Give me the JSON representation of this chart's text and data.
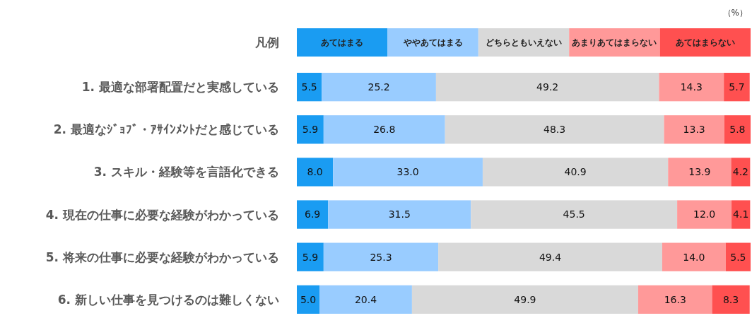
{
  "chart_data": {
    "type": "bar",
    "orientation": "horizontal",
    "stacked": true,
    "legend": "top",
    "legend_title": "凡例",
    "annotations": [
      "（%）"
    ],
    "categories": [
      "1. 最適な部署配置だと実感している",
      "2. 最適なｼﾞｮﾌﾞ・ｱｻｲﾝﾒﾝﾄだと感じている",
      "3. スキル・経験等を言語化できる",
      "4. 現在の仕事に必要な経験がわかっている",
      "5. 将来の仕事に必要な経験がわかっている",
      "6. 新しい仕事を見つけるのは難しくない"
    ],
    "series": [
      {
        "name": "あてはまる",
        "color": "#1a9cf2",
        "values": [
          5.5,
          5.9,
          8.0,
          6.9,
          5.9,
          5.0
        ],
        "value_labels": [
          "5.5",
          "5.9",
          "8.0",
          "6.9",
          "5.9",
          "5.0"
        ]
      },
      {
        "name": "ややあてはまる",
        "color": "#99ccff",
        "values": [
          25.2,
          26.8,
          33.0,
          31.5,
          25.3,
          20.4
        ],
        "value_labels": [
          "25.2",
          "26.8",
          "33.0",
          "31.5",
          "25.3",
          "20.4"
        ]
      },
      {
        "name": "どちらともいえない",
        "color": "#d9d9d9",
        "values": [
          49.2,
          48.3,
          40.9,
          45.5,
          49.4,
          49.9
        ],
        "value_labels": [
          "49.2",
          "48.3",
          "40.9",
          "45.5",
          "49.4",
          "49.9"
        ]
      },
      {
        "name": "あまりあてはまらない",
        "color": "#ff9999",
        "values": [
          14.3,
          13.3,
          13.9,
          12.0,
          14.0,
          16.3
        ],
        "value_labels": [
          "14.3",
          "13.3",
          "13.9",
          "12.0",
          "14.0",
          "16.3"
        ]
      },
      {
        "name": "あてはまらない",
        "color": "#ff5050",
        "values": [
          5.7,
          5.8,
          4.2,
          4.1,
          5.5,
          8.3
        ],
        "value_labels": [
          "5.7",
          "5.8",
          "4.2",
          "4.1",
          "5.5",
          "8.3"
        ]
      }
    ]
  }
}
